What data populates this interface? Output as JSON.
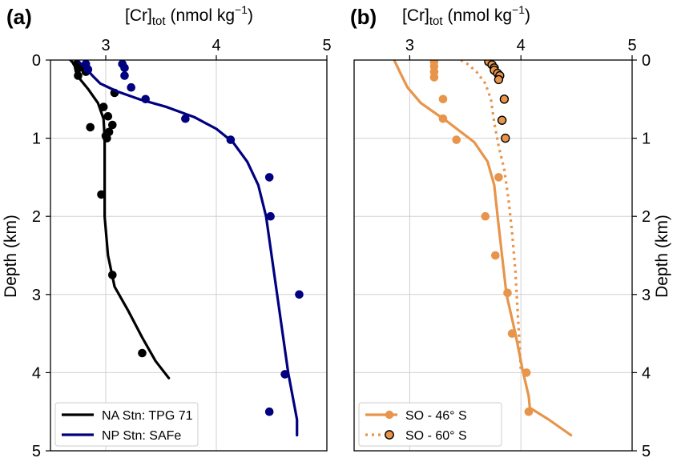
{
  "figure": {
    "panels": [
      {
        "panel_label": "(a)",
        "xlabel_main": "[Cr]",
        "xlabel_sub": "tot",
        "xlabel_unit": "(nmol kg",
        "xlabel_exp": "−1",
        "xlabel_close": ")",
        "ylabel": "Depth (km)",
        "ylabel_side": "left",
        "show_y_ticklabels": true
      },
      {
        "panel_label": "(b)",
        "xlabel_main": "[Cr]",
        "xlabel_sub": "tot",
        "xlabel_unit": "(nmol kg",
        "xlabel_exp": "−1",
        "xlabel_close": ")",
        "ylabel": "Depth (km)",
        "ylabel_side": "right",
        "show_y_ticklabels": true
      }
    ],
    "x_ticks": [
      "3",
      "4",
      "5"
    ],
    "y_ticks": [
      "0",
      "1",
      "2",
      "3",
      "4",
      "5"
    ]
  },
  "chart_data": [
    {
      "panel": "a",
      "type": "scatter",
      "x_axis": "top",
      "xlim": [
        2.5,
        5
      ],
      "ylim": [
        5,
        0
      ],
      "y_inverted": true,
      "grid": true,
      "legend_position": "bottom-left",
      "series": [
        {
          "name": "NA Stn: TPG 71",
          "color": "#000000",
          "line_style": "solid",
          "marker": "filled-circle",
          "line": [
            [
              2.68,
              0.0
            ],
            [
              2.7,
              0.03
            ],
            [
              2.72,
              0.08
            ],
            [
              2.73,
              0.15
            ],
            [
              2.77,
              0.25
            ],
            [
              2.84,
              0.37
            ],
            [
              2.93,
              0.55
            ],
            [
              2.98,
              0.75
            ],
            [
              2.99,
              1.0
            ],
            [
              2.99,
              1.5
            ],
            [
              2.99,
              2.0
            ],
            [
              3.02,
              2.5
            ],
            [
              3.08,
              2.9
            ],
            [
              3.2,
              3.2
            ],
            [
              3.33,
              3.55
            ],
            [
              3.45,
              3.85
            ],
            [
              3.57,
              4.07
            ]
          ],
          "points": [
            [
              2.74,
              0.05
            ],
            [
              2.76,
              0.1
            ],
            [
              2.8,
              0.1
            ],
            [
              2.82,
              0.15
            ],
            [
              2.75,
              0.2
            ],
            [
              3.08,
              0.42
            ],
            [
              2.98,
              0.6
            ],
            [
              3.02,
              0.72
            ],
            [
              3.06,
              0.83
            ],
            [
              2.86,
              0.86
            ],
            [
              3.03,
              0.92
            ],
            [
              3.0,
              0.97
            ],
            [
              3.01,
              1.0
            ],
            [
              2.96,
              1.72
            ],
            [
              3.06,
              2.75
            ],
            [
              3.33,
              3.75
            ]
          ]
        },
        {
          "name": "NP Stn: SAFe",
          "color": "#000080",
          "line_style": "solid",
          "marker": "filled-circle",
          "line": [
            [
              2.76,
              0.03
            ],
            [
              2.82,
              0.1
            ],
            [
              2.88,
              0.2
            ],
            [
              2.95,
              0.3
            ],
            [
              3.1,
              0.4
            ],
            [
              3.3,
              0.5
            ],
            [
              3.55,
              0.6
            ],
            [
              3.8,
              0.73
            ],
            [
              4.0,
              0.88
            ],
            [
              4.15,
              1.05
            ],
            [
              4.28,
              1.3
            ],
            [
              4.38,
              1.6
            ],
            [
              4.45,
              2.0
            ],
            [
              4.5,
              2.5
            ],
            [
              4.55,
              3.0
            ],
            [
              4.6,
              3.5
            ],
            [
              4.65,
              4.0
            ],
            [
              4.69,
              4.3
            ],
            [
              4.73,
              4.6
            ],
            [
              4.73,
              4.8
            ]
          ],
          "points": [
            [
              2.82,
              0.05
            ],
            [
              3.15,
              0.05
            ],
            [
              3.17,
              0.1
            ],
            [
              2.84,
              0.12
            ],
            [
              3.17,
              0.2
            ],
            [
              3.23,
              0.35
            ],
            [
              3.36,
              0.5
            ],
            [
              3.72,
              0.75
            ],
            [
              4.13,
              1.02
            ],
            [
              4.48,
              1.5
            ],
            [
              4.49,
              2.0
            ],
            [
              4.75,
              3.0
            ],
            [
              4.62,
              4.02
            ],
            [
              4.48,
              4.5
            ]
          ]
        }
      ]
    },
    {
      "panel": "b",
      "type": "scatter",
      "x_axis": "top",
      "xlim": [
        2.5,
        5
      ],
      "ylim": [
        5,
        0
      ],
      "y_inverted": true,
      "grid": true,
      "legend_position": "bottom-left",
      "series": [
        {
          "name": "SO - 46° S",
          "color": "#E8944A",
          "line_style": "solid",
          "marker": "filled-circle",
          "line": [
            [
              2.86,
              0.0
            ],
            [
              2.91,
              0.15
            ],
            [
              2.98,
              0.35
            ],
            [
              3.1,
              0.55
            ],
            [
              3.35,
              0.8
            ],
            [
              3.58,
              1.05
            ],
            [
              3.7,
              1.3
            ],
            [
              3.76,
              1.6
            ],
            [
              3.79,
              2.0
            ],
            [
              3.83,
              2.5
            ],
            [
              3.87,
              3.0
            ],
            [
              3.95,
              3.5
            ],
            [
              4.02,
              4.0
            ],
            [
              4.07,
              4.3
            ],
            [
              4.08,
              4.45
            ],
            [
              4.25,
              4.6
            ],
            [
              4.45,
              4.8
            ]
          ],
          "points": [
            [
              3.22,
              0.02
            ],
            [
              3.22,
              0.08
            ],
            [
              3.22,
              0.15
            ],
            [
              3.22,
              0.22
            ],
            [
              3.3,
              0.5
            ],
            [
              3.3,
              0.75
            ],
            [
              3.42,
              1.02
            ],
            [
              3.8,
              1.5
            ],
            [
              3.68,
              2.0
            ],
            [
              3.77,
              2.5
            ],
            [
              3.88,
              2.98
            ],
            [
              3.92,
              3.5
            ],
            [
              4.05,
              4.0
            ],
            [
              4.07,
              4.5
            ]
          ]
        },
        {
          "name": "SO - 60° S",
          "color": "#E8944A",
          "line_style": "dotted",
          "marker": "filled-circle-black-edge",
          "line": [
            [
              3.46,
              0.0
            ],
            [
              3.52,
              0.05
            ],
            [
              3.6,
              0.15
            ],
            [
              3.68,
              0.3
            ],
            [
              3.73,
              0.5
            ],
            [
              3.76,
              0.8
            ],
            [
              3.8,
              1.1
            ],
            [
              3.85,
              1.4
            ],
            [
              3.89,
              1.8
            ],
            [
              3.92,
              2.2
            ],
            [
              3.95,
              2.7
            ],
            [
              3.97,
              3.2
            ],
            [
              3.99,
              3.7
            ],
            [
              4.0,
              4.0
            ]
          ],
          "points": [
            [
              3.71,
              0.02
            ],
            [
              3.74,
              0.06
            ],
            [
              3.76,
              0.1
            ],
            [
              3.76,
              0.13
            ],
            [
              3.79,
              0.17
            ],
            [
              3.81,
              0.2
            ],
            [
              3.8,
              0.25
            ],
            [
              3.85,
              0.5
            ],
            [
              3.83,
              0.77
            ],
            [
              3.86,
              1.0
            ]
          ]
        }
      ]
    }
  ]
}
